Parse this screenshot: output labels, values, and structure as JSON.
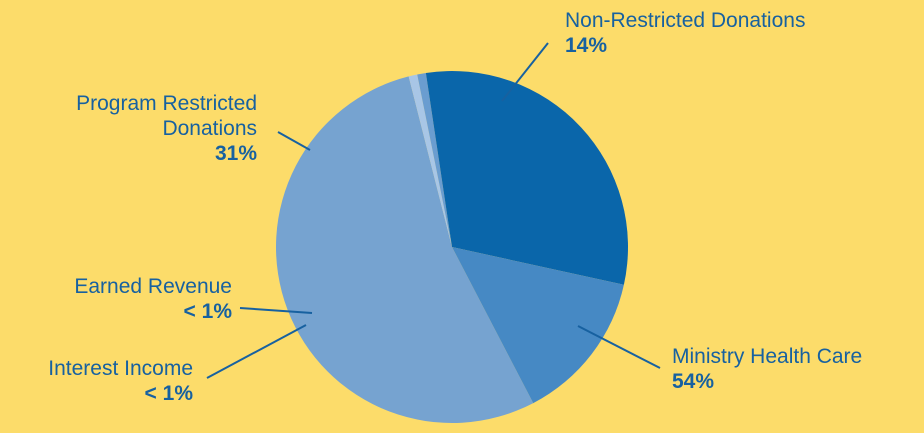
{
  "chart_data": {
    "type": "pie",
    "slices": [
      {
        "label": "Ministry Health Care",
        "value": 54,
        "display": "54%",
        "color": "#76A3D0"
      },
      {
        "label": "Interest Income",
        "value": 0.8,
        "display": "< 1%",
        "color": "#A8C6E6"
      },
      {
        "label": "Earned Revenue",
        "value": 0.8,
        "display": "< 1%",
        "color": "#6A9DD0"
      },
      {
        "label": "Program Restricted Donations",
        "value": 31,
        "display": "31%",
        "color": "#0A66AA"
      },
      {
        "label": "Non-Restricted Donations",
        "value": 14,
        "display": "14%",
        "color": "#4689C4"
      }
    ],
    "labels": {
      "non_restricted": {
        "name": "Non-Restricted Donations",
        "pct": "14%"
      },
      "program_restricted": {
        "name_line1": "Program Restricted",
        "name_line2": "Donations",
        "pct": "31%"
      },
      "earned_revenue": {
        "name": "Earned Revenue",
        "pct": "< 1%"
      },
      "interest_income": {
        "name": "Interest Income",
        "pct": "< 1%"
      },
      "ministry_health_care": {
        "name": "Ministry Health Care",
        "pct": "54%"
      }
    },
    "colors": {
      "background": "#FCDC6A",
      "label_text": "#1761A0",
      "leader_line": "#1761A0"
    }
  }
}
